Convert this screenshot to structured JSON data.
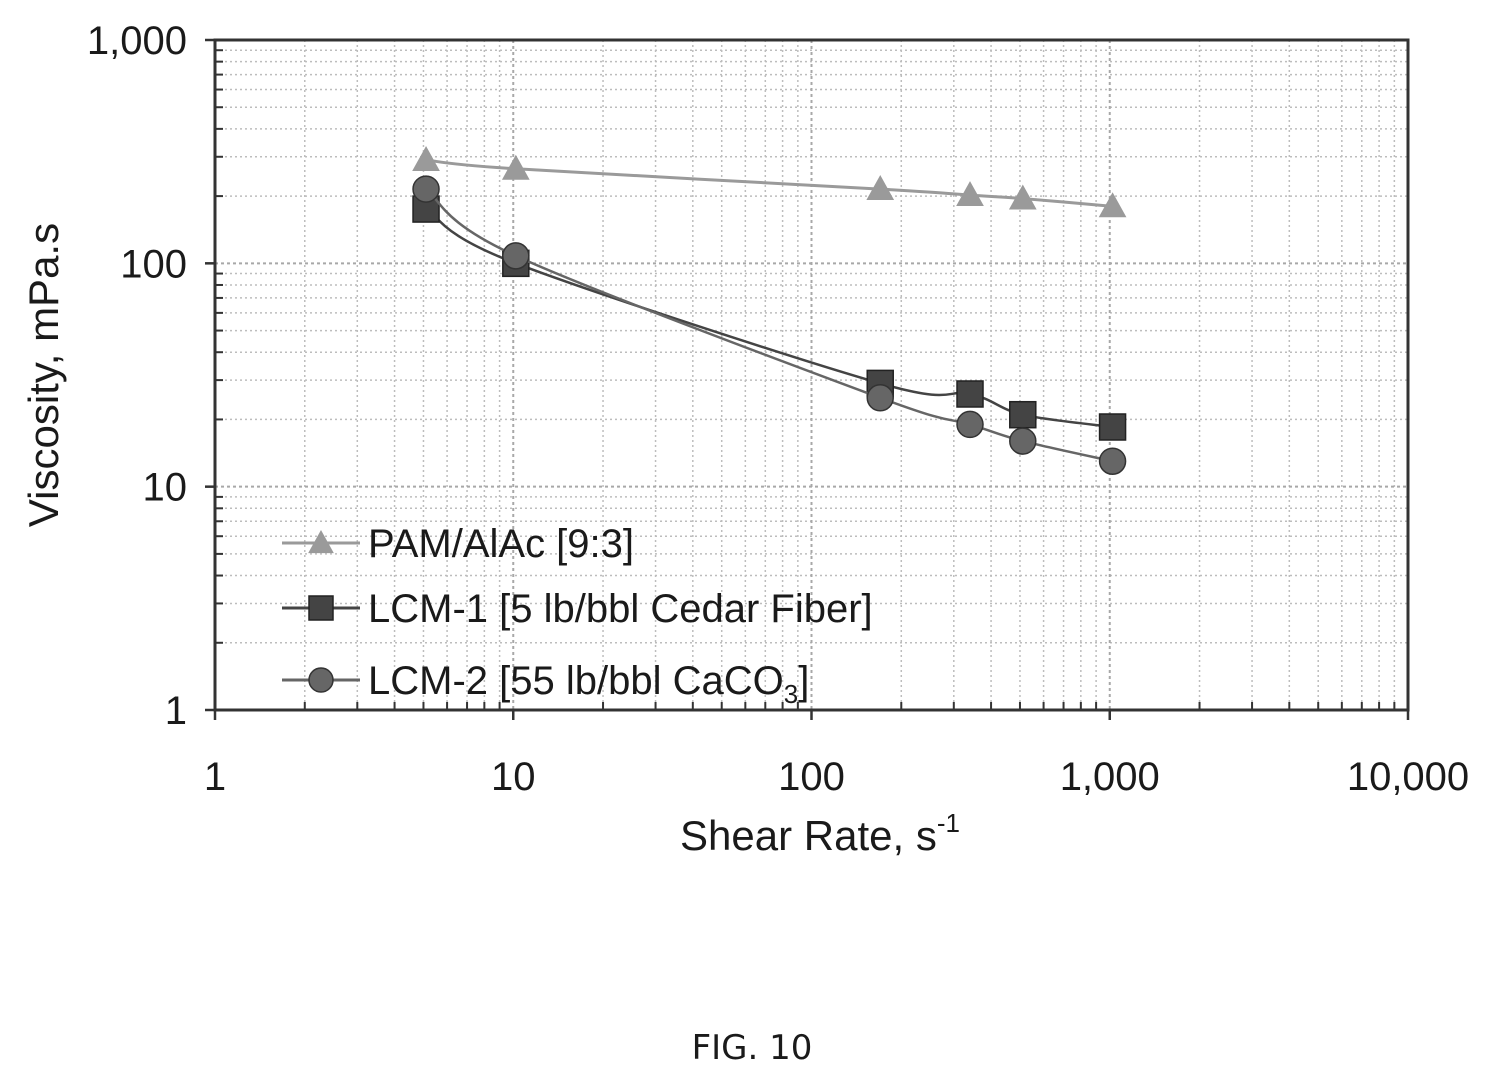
{
  "figure_caption": "FIG. 10",
  "chart_data": {
    "type": "line",
    "xlabel_main": "Shear Rate, s",
    "xlabel_sup": "-1",
    "ylabel": "Viscosity, mPa.s",
    "x_scale": "log",
    "y_scale": "log",
    "xlim": [
      1,
      10000
    ],
    "ylim": [
      1,
      1000
    ],
    "x_ticks": [
      1,
      10,
      100,
      1000,
      10000
    ],
    "x_tick_labels": [
      "1",
      "10",
      "100",
      "1,000",
      "10,000"
    ],
    "y_ticks": [
      1,
      10,
      100,
      1000
    ],
    "y_tick_labels": [
      "1",
      "10",
      "100",
      "1,000"
    ],
    "grid": true,
    "legend_position": "lower-left",
    "series": [
      {
        "name": "PAM/AlAc [9:3]",
        "marker": "triangle",
        "color": "#9a9a9a",
        "x": [
          5.1,
          10.2,
          170,
          340,
          511,
          1022
        ],
        "y": [
          290,
          265,
          215,
          202,
          195,
          180
        ]
      },
      {
        "name": "LCM-1 [5 lb/bbl Cedar Fiber]",
        "marker": "square",
        "color": "#444444",
        "x": [
          5.1,
          10.2,
          170,
          340,
          511,
          1022
        ],
        "y": [
          175,
          100,
          29,
          26,
          21,
          18.5
        ]
      },
      {
        "name": "LCM-2 [55 lb/bbl CaCO",
        "name_sub": "3",
        "name_end": "]",
        "marker": "circle",
        "color": "#666666",
        "x": [
          5.1,
          10.2,
          170,
          340,
          511,
          1022
        ],
        "y": [
          215,
          108,
          25,
          19,
          16,
          13
        ]
      }
    ]
  }
}
